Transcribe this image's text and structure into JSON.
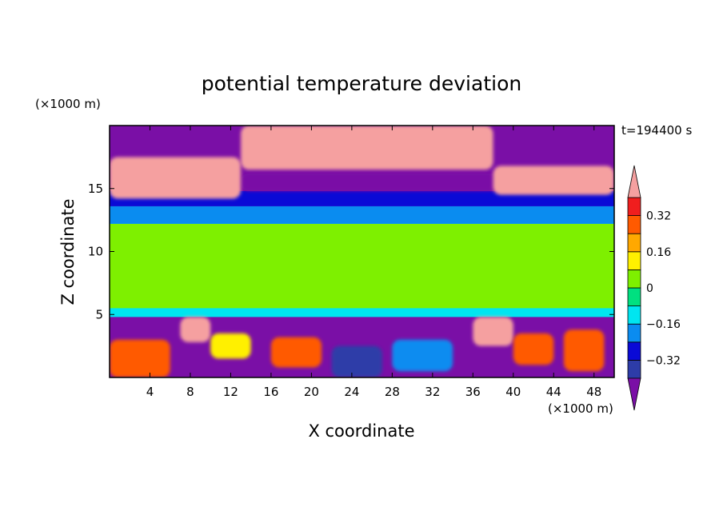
{
  "chart_data": {
    "type": "heatmap",
    "title": "potential temperature deviation",
    "time_label": "t=194400 s",
    "xlabel": "X coordinate",
    "ylabel": "Z coordinate",
    "x_unit": "(×1000 m)",
    "y_unit": "(×1000 m)",
    "xlim": [
      0,
      50
    ],
    "ylim": [
      0,
      20
    ],
    "x_ticks": [
      "4",
      "8",
      "12",
      "16",
      "20",
      "24",
      "28",
      "32",
      "36",
      "40",
      "44",
      "48"
    ],
    "y_ticks": [
      "5",
      "10",
      "15"
    ],
    "colorbar": {
      "labels": [
        "0.32",
        "0.16",
        "0",
        "-0.16",
        "-0.32"
      ],
      "levels": [
        -0.4,
        -0.32,
        -0.24,
        -0.16,
        -0.08,
        0,
        0.08,
        0.16,
        0.24,
        0.32,
        0.4
      ],
      "colors": [
        "#7a0fa6",
        "#2d3ca8",
        "#0a0ad6",
        "#0a8cf0",
        "#00e5f0",
        "#00e080",
        "#7ef000",
        "#fff000",
        "#ffa800",
        "#ff5a00",
        "#f01e1e",
        "#f5a0a0"
      ],
      "extend": "both"
    },
    "field_regions": [
      {
        "x": [
          0,
          50
        ],
        "z": [
          0,
          20
        ],
        "value": -0.45
      },
      {
        "x": [
          0,
          50
        ],
        "z": [
          4.8,
          13.2
        ],
        "value": -0.12
      },
      {
        "x": [
          0,
          50
        ],
        "z": [
          5.5,
          12.2
        ],
        "value": 0.03
      },
      {
        "x": [
          0,
          50
        ],
        "z": [
          7.0,
          10.5
        ],
        "value": 0.06
      },
      {
        "x": [
          0,
          50
        ],
        "z": [
          12.2,
          13.6
        ],
        "value": -0.18
      },
      {
        "x": [
          0,
          50
        ],
        "z": [
          13.6,
          14.8
        ],
        "value": -0.28
      },
      {
        "x": [
          13,
          50
        ],
        "z": [
          14.8,
          16.2
        ],
        "value": -0.45
      },
      {
        "x": [
          0,
          13
        ],
        "z": [
          14.2,
          17.5
        ],
        "value": 0.45
      },
      {
        "x": [
          13,
          38
        ],
        "z": [
          16.5,
          20
        ],
        "value": 0.45
      },
      {
        "x": [
          38,
          50
        ],
        "z": [
          14.5,
          16.8
        ],
        "value": 0.45
      },
      {
        "x": [
          0,
          6
        ],
        "z": [
          0,
          3
        ],
        "value": 0.3
      },
      {
        "x": [
          7,
          10
        ],
        "z": [
          2.8,
          4.8
        ],
        "value": 0.45
      },
      {
        "x": [
          10,
          14
        ],
        "z": [
          1.5,
          3.5
        ],
        "value": 0.1
      },
      {
        "x": [
          16,
          21
        ],
        "z": [
          0.8,
          3.2
        ],
        "value": 0.25
      },
      {
        "x": [
          22,
          27
        ],
        "z": [
          0,
          2.5
        ],
        "value": -0.4
      },
      {
        "x": [
          28,
          34
        ],
        "z": [
          0.5,
          3
        ],
        "value": -0.2
      },
      {
        "x": [
          36,
          40
        ],
        "z": [
          2.5,
          4.8
        ],
        "value": 0.45
      },
      {
        "x": [
          40,
          44
        ],
        "z": [
          1,
          3.5
        ],
        "value": 0.3
      },
      {
        "x": [
          45,
          49
        ],
        "z": [
          0.5,
          3.8
        ],
        "value": 0.28
      }
    ]
  }
}
